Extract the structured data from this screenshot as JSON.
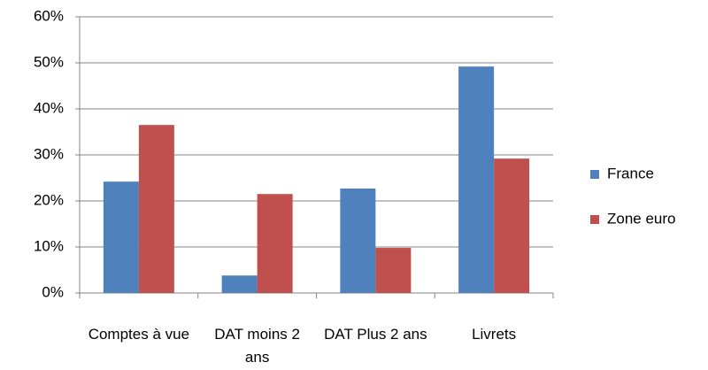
{
  "chart_data": {
    "type": "bar",
    "categories": [
      "Comptes à vue",
      "DAT moins 2 ans",
      "DAT Plus 2 ans",
      "Livrets"
    ],
    "series": [
      {
        "name": "France",
        "color": "#4f81bd",
        "values": [
          24.2,
          3.8,
          22.7,
          49.2
        ]
      },
      {
        "name": "Zone euro",
        "color": "#c0504d",
        "values": [
          36.5,
          21.5,
          9.8,
          29.2
        ]
      }
    ],
    "ylim": [
      0,
      60
    ],
    "yticks": [
      {
        "value": 0,
        "label": "0%"
      },
      {
        "value": 10,
        "label": "10%"
      },
      {
        "value": 20,
        "label": "20%"
      },
      {
        "value": 30,
        "label": "30%"
      },
      {
        "value": 40,
        "label": "40%"
      },
      {
        "value": 50,
        "label": "50%"
      },
      {
        "value": 60,
        "label": "60%"
      }
    ],
    "grid": true,
    "legend": "right"
  }
}
